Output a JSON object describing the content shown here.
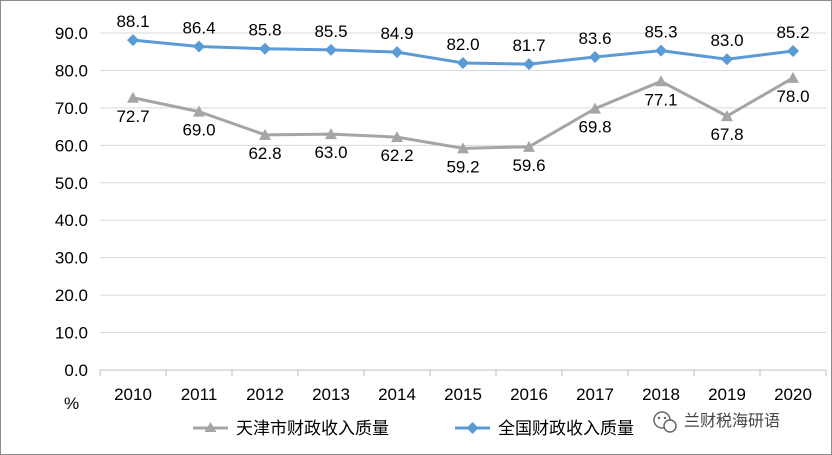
{
  "chart_data": {
    "type": "line",
    "categories": [
      "2010",
      "2011",
      "2012",
      "2013",
      "2014",
      "2015",
      "2016",
      "2017",
      "2018",
      "2019",
      "2020"
    ],
    "ylim": [
      0,
      90
    ],
    "yticks": [
      "90.0",
      "80.0",
      "70.0",
      "60.0",
      "50.0",
      "40.0",
      "30.0",
      "20.0",
      "10.0",
      "0.0"
    ],
    "ylabel": "%",
    "grid": true,
    "legend": "bottom",
    "series": [
      {
        "name": "天津市财政收入质量",
        "marker": "triangle",
        "color": "#a5a5a5",
        "values": [
          72.7,
          69.0,
          62.8,
          63.0,
          62.2,
          59.2,
          59.6,
          69.8,
          77.1,
          67.8,
          78.0
        ],
        "labels": [
          "72.7",
          "69.0",
          "62.8",
          "63.0",
          "62.2",
          "59.2",
          "59.6",
          "69.8",
          "77.1",
          "67.8",
          "78.0"
        ]
      },
      {
        "name": "全国财政收入质量",
        "marker": "diamond",
        "color": "#5b9bd5",
        "values": [
          88.1,
          86.4,
          85.8,
          85.5,
          84.9,
          82.0,
          81.7,
          83.6,
          85.3,
          83.0,
          85.2
        ],
        "labels": [
          "88.1",
          "86.4",
          "85.8",
          "85.5",
          "84.9",
          "82.0",
          "81.7",
          "83.6",
          "85.3",
          "83.0",
          "85.2"
        ]
      }
    ]
  },
  "watermark": {
    "text": "兰财税海研语",
    "icon": "wechat-icon"
  }
}
